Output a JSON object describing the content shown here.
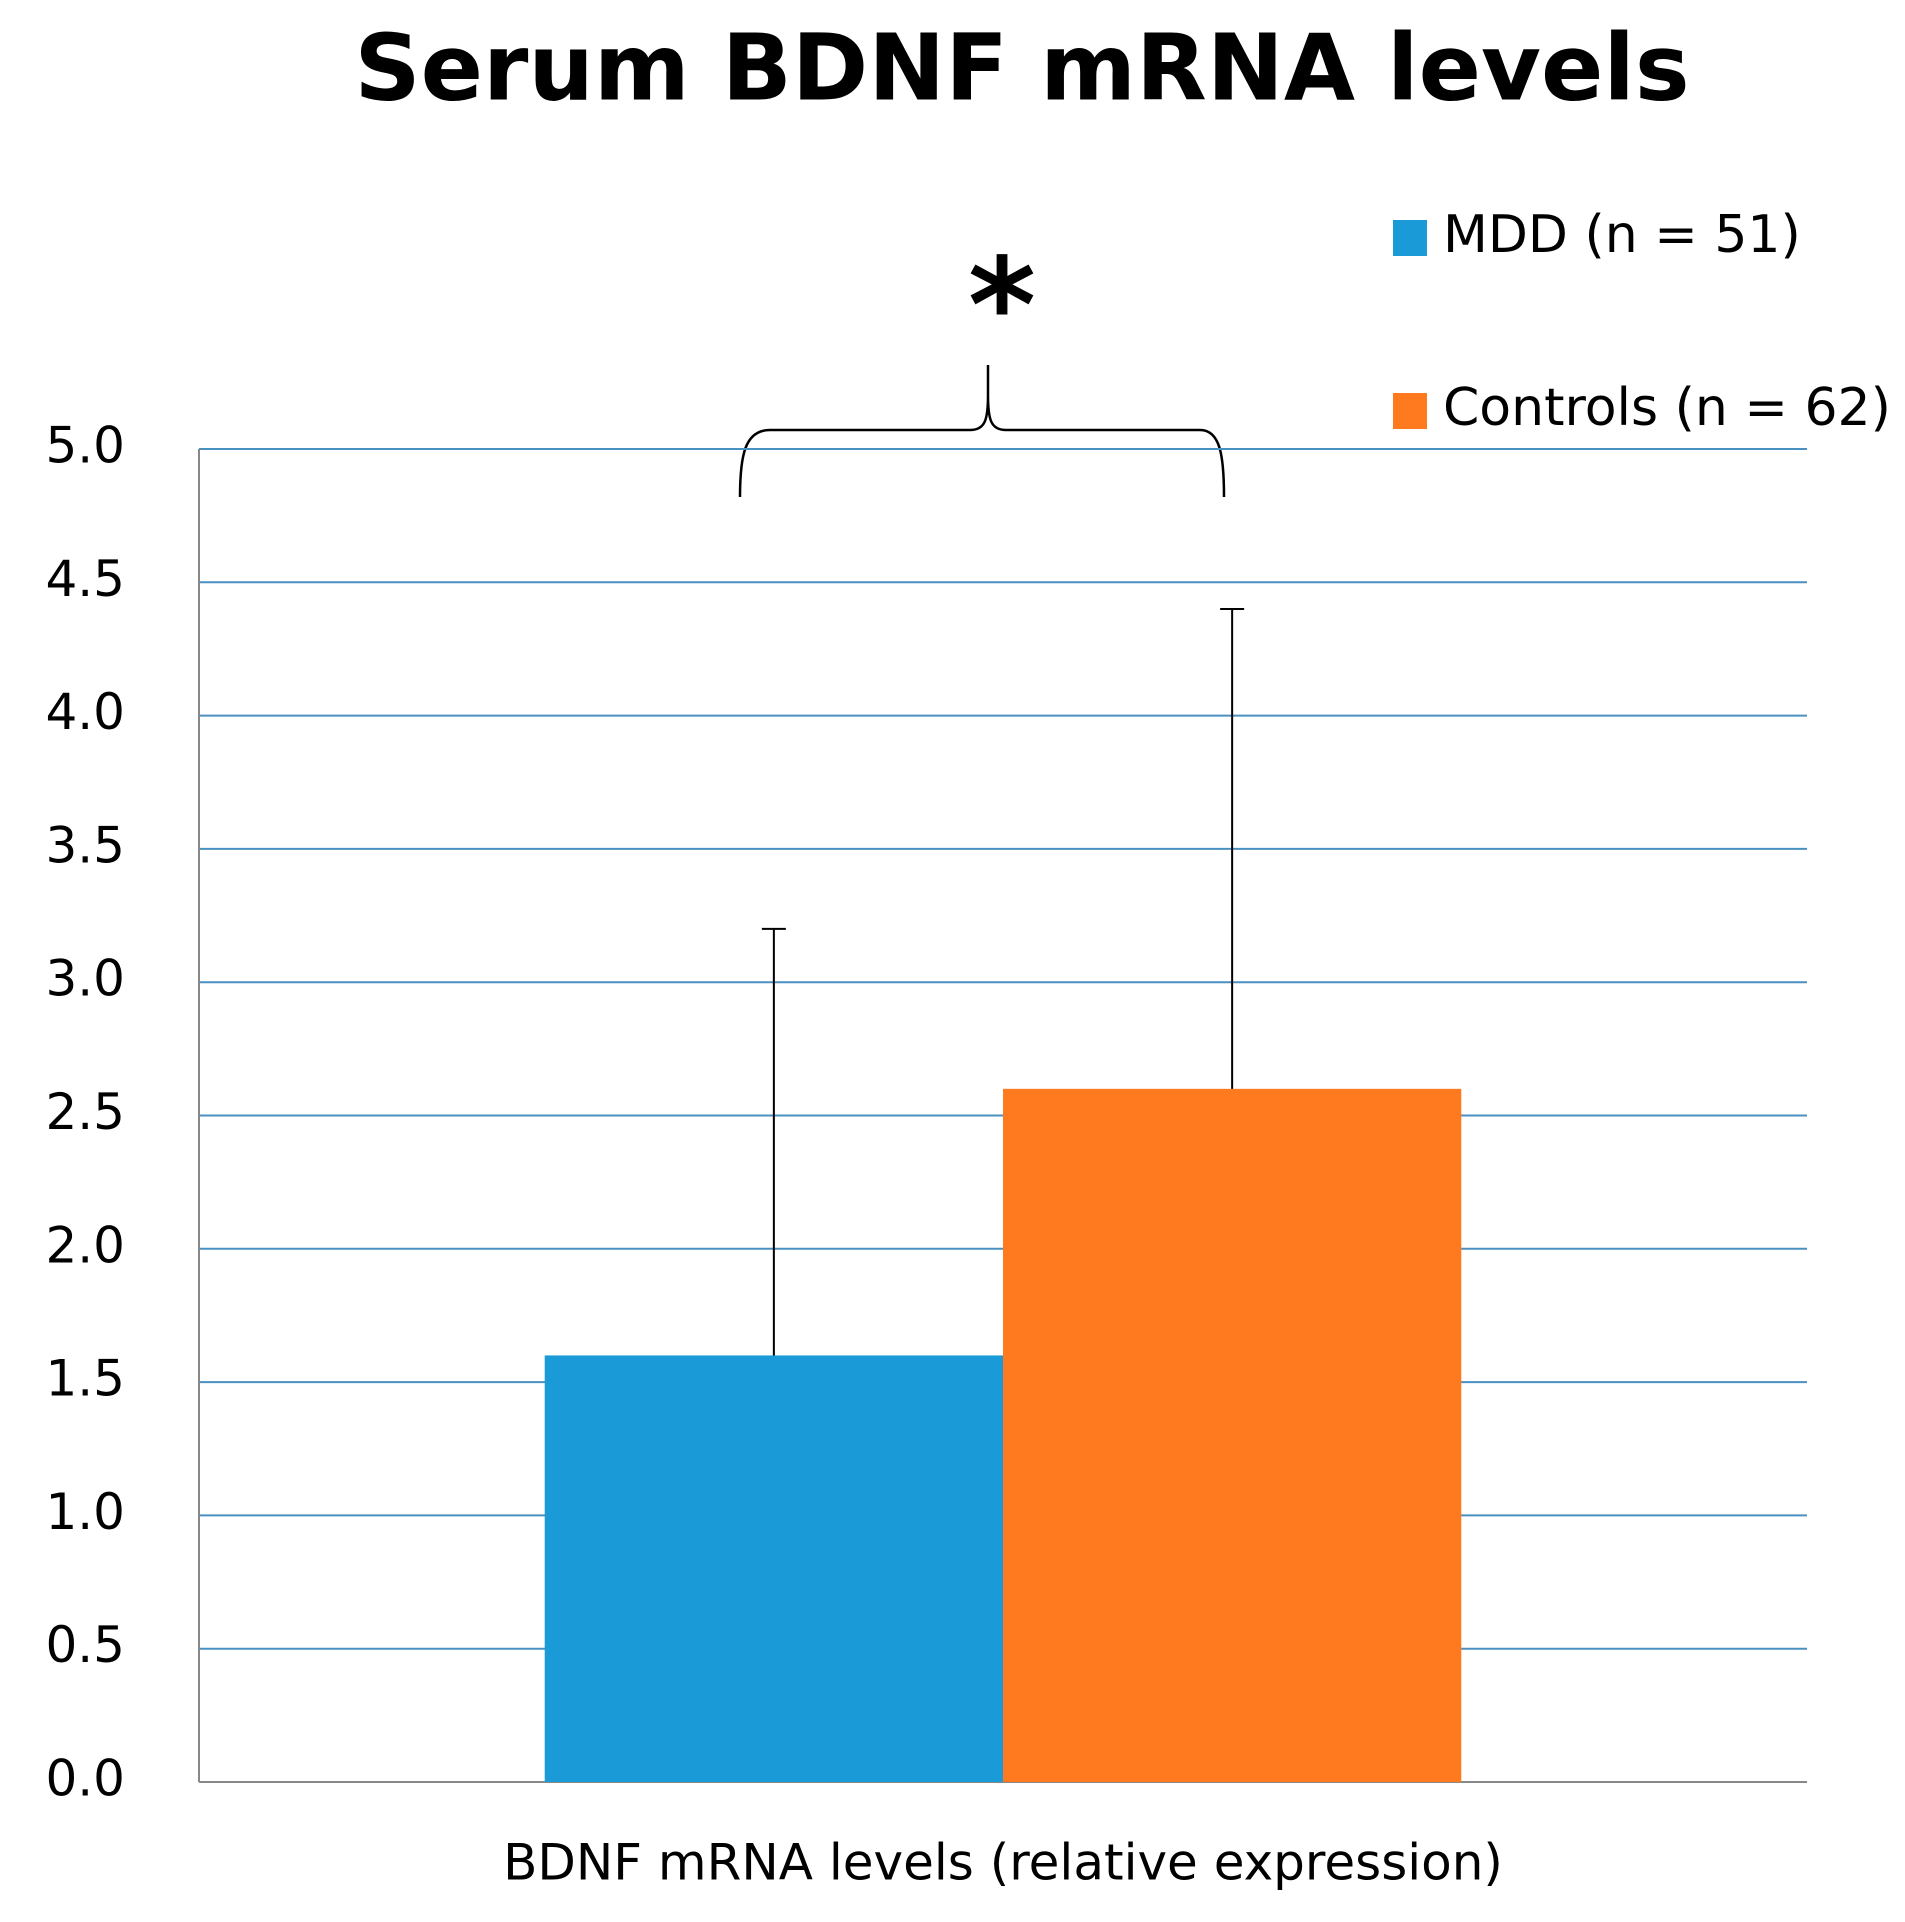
{
  "chart_data": {
    "type": "bar",
    "title": "Serum BDNF mRNA levels",
    "categories": [
      "BDNF mRNA levels (relative expression)"
    ],
    "series": [
      {
        "name": "MDD (n = 51)",
        "color": "#1a9ad6",
        "values": [
          1.6
        ],
        "errors": [
          1.6
        ]
      },
      {
        "name": "Controls (n = 62)",
        "color": "#ff7a1f",
        "values": [
          2.6
        ],
        "errors": [
          1.8
        ]
      }
    ],
    "annotation": "*",
    "ylim": [
      0,
      5
    ],
    "yticks": [
      {
        "value": 0,
        "label": "0.0"
      },
      0.5,
      {
        "value": 1,
        "label": "1.0"
      },
      1.5,
      {
        "value": 2,
        "label": "2.0"
      },
      2.5,
      {
        "value": 3,
        "label": "3.0"
      },
      3.5,
      {
        "value": 4,
        "label": "4.0"
      },
      4.5,
      {
        "value": 5,
        "label": "5.0"
      }
    ],
    "grid": true,
    "legend": "top-right"
  }
}
